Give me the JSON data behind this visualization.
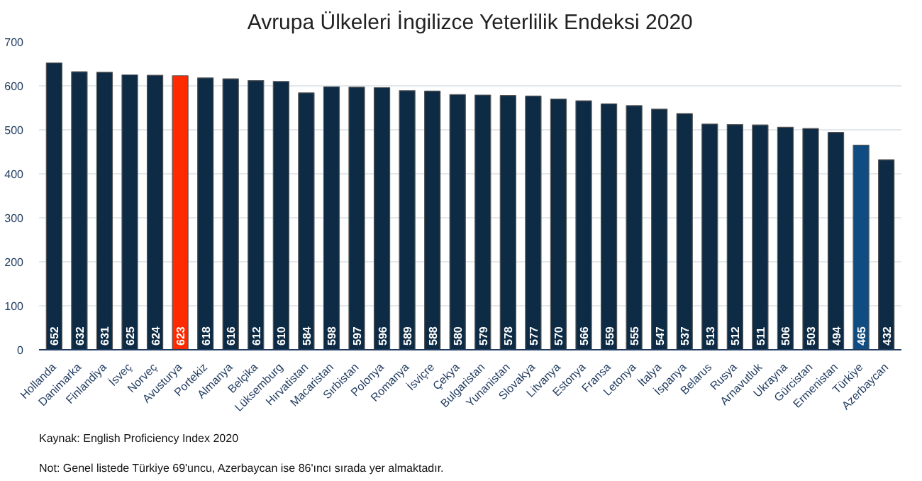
{
  "chart_data": {
    "type": "bar",
    "title": "Avrupa Ülkeleri İngilizce Yeterlilik Endeksi 2020",
    "categories": [
      "Hollanda",
      "Danimarka",
      "Finlandiya",
      "İsveç",
      "Norveç",
      "Avusturya",
      "Portekiz",
      "Almanya",
      "Belçika",
      "Lüksemburg",
      "Hırvatistan",
      "Macaristan",
      "Sırbistan",
      "Polonya",
      "Romanya",
      "İsviçre",
      "Çekya",
      "Bulgaristan",
      "Yunanistan",
      "Slovakya",
      "Litvanya",
      "Estonya",
      "Fransa",
      "Letonya",
      "İtalya",
      "İspanya",
      "Belarus",
      "Rusya",
      "Arnavutluk",
      "Ukrayna",
      "Gürcistan",
      "Ermenistan",
      "Türkiye",
      "Azerbaycan"
    ],
    "values": [
      652,
      632,
      631,
      625,
      624,
      623,
      618,
      616,
      612,
      610,
      584,
      598,
      597,
      596,
      589,
      588,
      580,
      579,
      578,
      577,
      570,
      566,
      559,
      555,
      547,
      537,
      513,
      512,
      511,
      506,
      503,
      494,
      465,
      432
    ],
    "colors": [
      "#0d2b45",
      "#0d2b45",
      "#0d2b45",
      "#0d2b45",
      "#0d2b45",
      "#ff2a00",
      "#0d2b45",
      "#0d2b45",
      "#0d2b45",
      "#0d2b45",
      "#0d2b45",
      "#0d2b45",
      "#0d2b45",
      "#0d2b45",
      "#0d2b45",
      "#0d2b45",
      "#0d2b45",
      "#0d2b45",
      "#0d2b45",
      "#0d2b45",
      "#0d2b45",
      "#0d2b45",
      "#0d2b45",
      "#0d2b45",
      "#0d2b45",
      "#0d2b45",
      "#0d2b45",
      "#0d2b45",
      "#0d2b45",
      "#0d2b45",
      "#0d2b45",
      "#0d2b45",
      "#0f4c81",
      "#0d2b45"
    ],
    "ylim": [
      0,
      700
    ],
    "yticks": [
      0,
      100,
      200,
      300,
      400,
      500,
      600,
      700
    ],
    "grid": "y",
    "data_labels": true,
    "annotations": [
      "Kaynak: English Proficiency Index 2020",
      "Not: Genel listede Türkiye 69'uncu, Azerbaycan ise 86'ıncı sırada yer almaktadır."
    ]
  }
}
